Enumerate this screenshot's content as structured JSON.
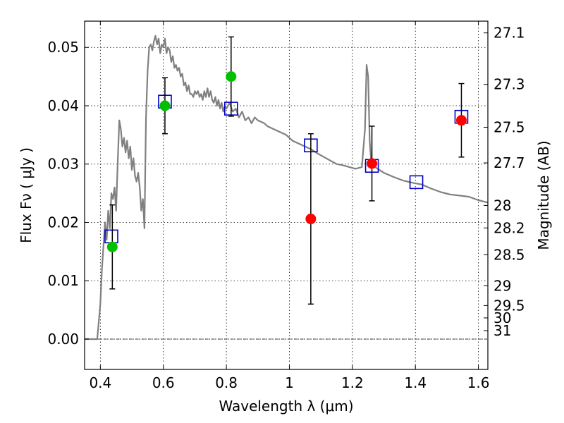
{
  "chart_data": {
    "type": "scatter",
    "xlabel": "Wavelength  λ (μm)",
    "ylabel": "Flux  Fν  ( μJy )",
    "y2label": "Magnitude (AB)",
    "xlim": [
      0.35,
      1.63
    ],
    "ylim": [
      -0.0052,
      0.0545
    ],
    "grid": true,
    "x_ticks": [
      {
        "value": 0.4,
        "label": "0.4"
      },
      {
        "value": 0.6,
        "label": "0.6"
      },
      {
        "value": 0.8,
        "label": "0.8"
      },
      {
        "value": 1.0,
        "label": "1"
      },
      {
        "value": 1.2,
        "label": "1.2"
      },
      {
        "value": 1.4,
        "label": "1.4"
      },
      {
        "value": 1.6,
        "label": "1.6"
      }
    ],
    "y_ticks": [
      {
        "value": 0.0,
        "label": "0.00"
      },
      {
        "value": 0.01,
        "label": "0.01"
      },
      {
        "value": 0.02,
        "label": "0.02"
      },
      {
        "value": 0.03,
        "label": "0.03"
      },
      {
        "value": 0.04,
        "label": "0.04"
      },
      {
        "value": 0.05,
        "label": "0.05"
      }
    ],
    "y2_ticks": [
      {
        "mag": 27.1,
        "label": "27.1"
      },
      {
        "mag": 27.3,
        "label": "27.3"
      },
      {
        "mag": 27.5,
        "label": "27.5"
      },
      {
        "mag": 27.7,
        "label": "27.7"
      },
      {
        "mag": 28.0,
        "label": "28"
      },
      {
        "mag": 28.2,
        "label": "28.2"
      },
      {
        "mag": 28.5,
        "label": "28.5"
      },
      {
        "mag": 29.0,
        "label": "29"
      },
      {
        "mag": 29.5,
        "label": "29.5"
      },
      {
        "mag": 30.0,
        "label": "30"
      },
      {
        "mag": 31.0,
        "label": "31"
      }
    ],
    "series": [
      {
        "kind": "line",
        "color": "#808080",
        "points": [
          [
            0.35,
            0.0
          ],
          [
            0.39,
            0.0
          ],
          [
            0.395,
            0.003
          ],
          [
            0.4,
            0.006
          ],
          [
            0.405,
            0.012
          ],
          [
            0.41,
            0.016
          ],
          [
            0.415,
            0.02
          ],
          [
            0.42,
            0.017
          ],
          [
            0.425,
            0.022
          ],
          [
            0.43,
            0.019
          ],
          [
            0.435,
            0.025
          ],
          [
            0.44,
            0.024
          ],
          [
            0.445,
            0.026
          ],
          [
            0.45,
            0.022
          ],
          [
            0.455,
            0.03
          ],
          [
            0.46,
            0.0375
          ],
          [
            0.465,
            0.036
          ],
          [
            0.47,
            0.033
          ],
          [
            0.475,
            0.0345
          ],
          [
            0.48,
            0.032
          ],
          [
            0.485,
            0.034
          ],
          [
            0.49,
            0.031
          ],
          [
            0.495,
            0.033
          ],
          [
            0.5,
            0.029
          ],
          [
            0.505,
            0.031
          ],
          [
            0.51,
            0.028
          ],
          [
            0.515,
            0.027
          ],
          [
            0.52,
            0.0285
          ],
          [
            0.525,
            0.026
          ],
          [
            0.53,
            0.022
          ],
          [
            0.535,
            0.024
          ],
          [
            0.54,
            0.019
          ],
          [
            0.545,
            0.038
          ],
          [
            0.55,
            0.046
          ],
          [
            0.555,
            0.05
          ],
          [
            0.56,
            0.0505
          ],
          [
            0.565,
            0.0495
          ],
          [
            0.57,
            0.051
          ],
          [
            0.575,
            0.052
          ],
          [
            0.58,
            0.0505
          ],
          [
            0.585,
            0.0515
          ],
          [
            0.59,
            0.049
          ],
          [
            0.595,
            0.0505
          ],
          [
            0.6,
            0.05
          ],
          [
            0.605,
            0.0515
          ],
          [
            0.61,
            0.049
          ],
          [
            0.615,
            0.05
          ],
          [
            0.62,
            0.0495
          ],
          [
            0.625,
            0.0475
          ],
          [
            0.63,
            0.0485
          ],
          [
            0.635,
            0.0465
          ],
          [
            0.64,
            0.047
          ],
          [
            0.645,
            0.046
          ],
          [
            0.65,
            0.0465
          ],
          [
            0.655,
            0.045
          ],
          [
            0.66,
            0.0455
          ],
          [
            0.665,
            0.0435
          ],
          [
            0.67,
            0.044
          ],
          [
            0.675,
            0.0425
          ],
          [
            0.68,
            0.0435
          ],
          [
            0.685,
            0.042
          ],
          [
            0.69,
            0.042
          ],
          [
            0.695,
            0.0415
          ],
          [
            0.7,
            0.0425
          ],
          [
            0.705,
            0.042
          ],
          [
            0.71,
            0.0425
          ],
          [
            0.715,
            0.0415
          ],
          [
            0.72,
            0.042
          ],
          [
            0.725,
            0.041
          ],
          [
            0.73,
            0.0425
          ],
          [
            0.735,
            0.0415
          ],
          [
            0.74,
            0.043
          ],
          [
            0.745,
            0.0415
          ],
          [
            0.75,
            0.0425
          ],
          [
            0.755,
            0.041
          ],
          [
            0.76,
            0.0405
          ],
          [
            0.765,
            0.0415
          ],
          [
            0.77,
            0.04
          ],
          [
            0.775,
            0.041
          ],
          [
            0.78,
            0.0395
          ],
          [
            0.785,
            0.0405
          ],
          [
            0.79,
            0.039
          ],
          [
            0.795,
            0.04
          ],
          [
            0.8,
            0.0395
          ],
          [
            0.81,
            0.0405
          ],
          [
            0.82,
            0.039
          ],
          [
            0.83,
            0.0395
          ],
          [
            0.84,
            0.038
          ],
          [
            0.85,
            0.039
          ],
          [
            0.86,
            0.0375
          ],
          [
            0.87,
            0.038
          ],
          [
            0.88,
            0.037
          ],
          [
            0.89,
            0.038
          ],
          [
            0.9,
            0.0375
          ],
          [
            0.92,
            0.037
          ],
          [
            0.93,
            0.0365
          ],
          [
            0.95,
            0.036
          ],
          [
            0.97,
            0.0355
          ],
          [
            0.99,
            0.035
          ],
          [
            1.01,
            0.034
          ],
          [
            1.03,
            0.0335
          ],
          [
            1.05,
            0.033
          ],
          [
            1.07,
            0.0325
          ],
          [
            1.09,
            0.0318
          ],
          [
            1.11,
            0.0312
          ],
          [
            1.13,
            0.0306
          ],
          [
            1.15,
            0.03
          ],
          [
            1.17,
            0.0298
          ],
          [
            1.19,
            0.0295
          ],
          [
            1.21,
            0.0292
          ],
          [
            1.23,
            0.0295
          ],
          [
            1.24,
            0.036
          ],
          [
            1.245,
            0.047
          ],
          [
            1.25,
            0.045
          ],
          [
            1.255,
            0.034
          ],
          [
            1.26,
            0.03
          ],
          [
            1.28,
            0.0292
          ],
          [
            1.3,
            0.0285
          ],
          [
            1.33,
            0.0278
          ],
          [
            1.36,
            0.0272
          ],
          [
            1.39,
            0.0268
          ],
          [
            1.42,
            0.0265
          ],
          [
            1.45,
            0.0258
          ],
          [
            1.48,
            0.0252
          ],
          [
            1.51,
            0.0248
          ],
          [
            1.54,
            0.0246
          ],
          [
            1.57,
            0.0244
          ],
          [
            1.6,
            0.0238
          ],
          [
            1.63,
            0.0234
          ]
        ]
      },
      {
        "kind": "model-squares",
        "color": "#0000cc",
        "x": [
          0.435,
          0.605,
          0.815,
          1.068,
          1.262,
          1.403,
          1.546
        ],
        "y": [
          0.0176,
          0.0407,
          0.0395,
          0.0332,
          0.0297,
          0.0269,
          0.0381
        ]
      },
      {
        "kind": "points",
        "color": "#00c000",
        "x": [
          0.438,
          0.605,
          0.815
        ],
        "y": [
          0.0158,
          0.04,
          0.045
        ],
        "yerr": [
          0.0072,
          0.0048,
          0.0068
        ]
      },
      {
        "kind": "points",
        "color": "#ff0000",
        "x": [
          1.068,
          1.262,
          1.546
        ],
        "y": [
          0.0206,
          0.0301,
          0.0375
        ],
        "yerr": [
          0.0146,
          0.0064,
          0.0063
        ]
      }
    ]
  }
}
